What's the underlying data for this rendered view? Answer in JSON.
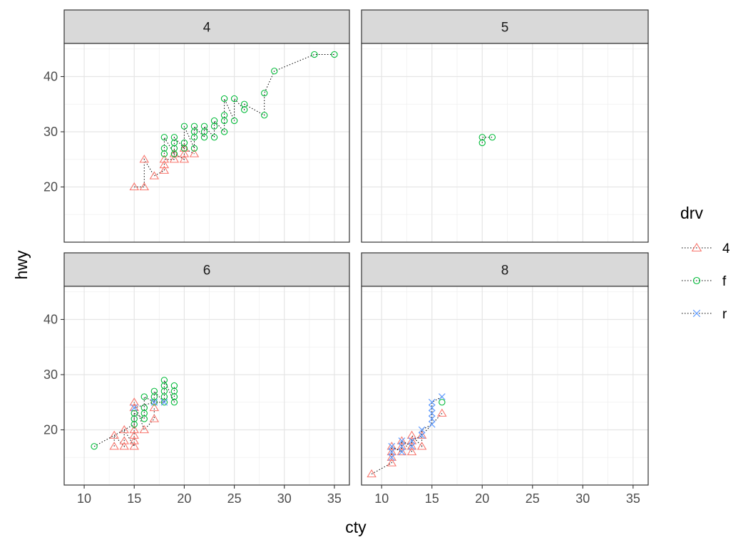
{
  "chart_data": {
    "type": "scatter",
    "facet_by": "cyl",
    "connected_with": "dotted-line",
    "xlabel": "cty",
    "ylabel": "hwy",
    "xlim": [
      8,
      36.5
    ],
    "ylim": [
      10,
      46
    ],
    "xticks": [
      10,
      15,
      20,
      25,
      30,
      35
    ],
    "yticks": [
      20,
      30,
      40
    ],
    "grid": true,
    "legend": {
      "title": "drv",
      "position": "right",
      "entries": [
        {
          "label": "4",
          "shape": "triangle",
          "color": "#F8766D"
        },
        {
          "label": "f",
          "shape": "circle",
          "color": "#00BA38"
        },
        {
          "label": "r",
          "shape": "cross",
          "color": "#619CFF"
        }
      ]
    },
    "panels": [
      {
        "label": "4",
        "series": [
          {
            "name": "4",
            "points": [
              [
                15,
                20
              ],
              [
                16,
                20
              ],
              [
                16,
                25
              ],
              [
                17,
                22
              ],
              [
                18,
                23
              ],
              [
                18,
                24
              ],
              [
                18,
                25
              ],
              [
                19,
                25
              ],
              [
                19,
                26
              ],
              [
                20,
                25
              ],
              [
                20,
                26
              ],
              [
                20,
                27
              ],
              [
                21,
                26
              ]
            ]
          },
          {
            "name": "f",
            "points": [
              [
                18,
                26
              ],
              [
                18,
                27
              ],
              [
                18,
                29
              ],
              [
                19,
                26
              ],
              [
                19,
                27
              ],
              [
                19,
                28
              ],
              [
                19,
                29
              ],
              [
                20,
                27
              ],
              [
                20,
                28
              ],
              [
                20,
                31
              ],
              [
                21,
                27
              ],
              [
                21,
                29
              ],
              [
                21,
                30
              ],
              [
                21,
                31
              ],
              [
                22,
                29
              ],
              [
                22,
                30
              ],
              [
                22,
                31
              ],
              [
                23,
                29
              ],
              [
                23,
                31
              ],
              [
                23,
                32
              ],
              [
                24,
                30
              ],
              [
                24,
                32
              ],
              [
                24,
                33
              ],
              [
                24,
                36
              ],
              [
                25,
                32
              ],
              [
                25,
                36
              ],
              [
                26,
                34
              ],
              [
                26,
                35
              ],
              [
                28,
                33
              ],
              [
                28,
                37
              ],
              [
                29,
                41
              ],
              [
                33,
                44
              ],
              [
                35,
                44
              ]
            ]
          },
          {
            "name": "r",
            "points": []
          }
        ]
      },
      {
        "label": "5",
        "series": [
          {
            "name": "4",
            "points": []
          },
          {
            "name": "f",
            "points": [
              [
                20,
                28
              ],
              [
                20,
                29
              ],
              [
                21,
                29
              ]
            ]
          },
          {
            "name": "r",
            "points": []
          }
        ]
      },
      {
        "label": "6",
        "series": [
          {
            "name": "4",
            "points": [
              [
                13,
                17
              ],
              [
                13,
                19
              ],
              [
                14,
                17
              ],
              [
                14,
                18
              ],
              [
                14,
                20
              ],
              [
                15,
                17
              ],
              [
                15,
                18
              ],
              [
                15,
                19
              ],
              [
                15,
                20
              ],
              [
                15,
                24
              ],
              [
                15,
                25
              ],
              [
                16,
                20
              ],
              [
                17,
                22
              ],
              [
                17,
                24
              ]
            ]
          },
          {
            "name": "f",
            "points": [
              [
                11,
                17
              ],
              [
                15,
                21
              ],
              [
                15,
                22
              ],
              [
                15,
                23
              ],
              [
                16,
                22
              ],
              [
                16,
                23
              ],
              [
                16,
                24
              ],
              [
                16,
                26
              ],
              [
                17,
                25
              ],
              [
                17,
                26
              ],
              [
                17,
                27
              ],
              [
                18,
                25
              ],
              [
                18,
                26
              ],
              [
                18,
                27
              ],
              [
                18,
                28
              ],
              [
                18,
                29
              ],
              [
                19,
                25
              ],
              [
                19,
                26
              ],
              [
                19,
                27
              ],
              [
                19,
                28
              ]
            ]
          },
          {
            "name": "r",
            "points": [
              [
                15,
                24
              ],
              [
                17,
                25
              ],
              [
                18,
                25
              ]
            ]
          }
        ]
      },
      {
        "label": "8",
        "series": [
          {
            "name": "4",
            "points": [
              [
                9,
                12
              ],
              [
                11,
                14
              ],
              [
                11,
                15
              ],
              [
                11,
                16
              ],
              [
                11,
                17
              ],
              [
                12,
                16
              ],
              [
                12,
                17
              ],
              [
                12,
                18
              ],
              [
                13,
                16
              ],
              [
                13,
                17
              ],
              [
                13,
                18
              ],
              [
                13,
                19
              ],
              [
                14,
                17
              ],
              [
                14,
                19
              ],
              [
                16,
                23
              ]
            ]
          },
          {
            "name": "f",
            "points": [
              [
                16,
                25
              ]
            ]
          },
          {
            "name": "r",
            "points": [
              [
                11,
                15
              ],
              [
                11,
                16
              ],
              [
                11,
                17
              ],
              [
                12,
                16
              ],
              [
                12,
                17
              ],
              [
                12,
                18
              ],
              [
                13,
                17
              ],
              [
                13,
                18
              ],
              [
                14,
                19
              ],
              [
                14,
                20
              ],
              [
                15,
                21
              ],
              [
                15,
                22
              ],
              [
                15,
                23
              ],
              [
                15,
                24
              ],
              [
                15,
                25
              ],
              [
                16,
                26
              ]
            ]
          }
        ]
      }
    ]
  }
}
